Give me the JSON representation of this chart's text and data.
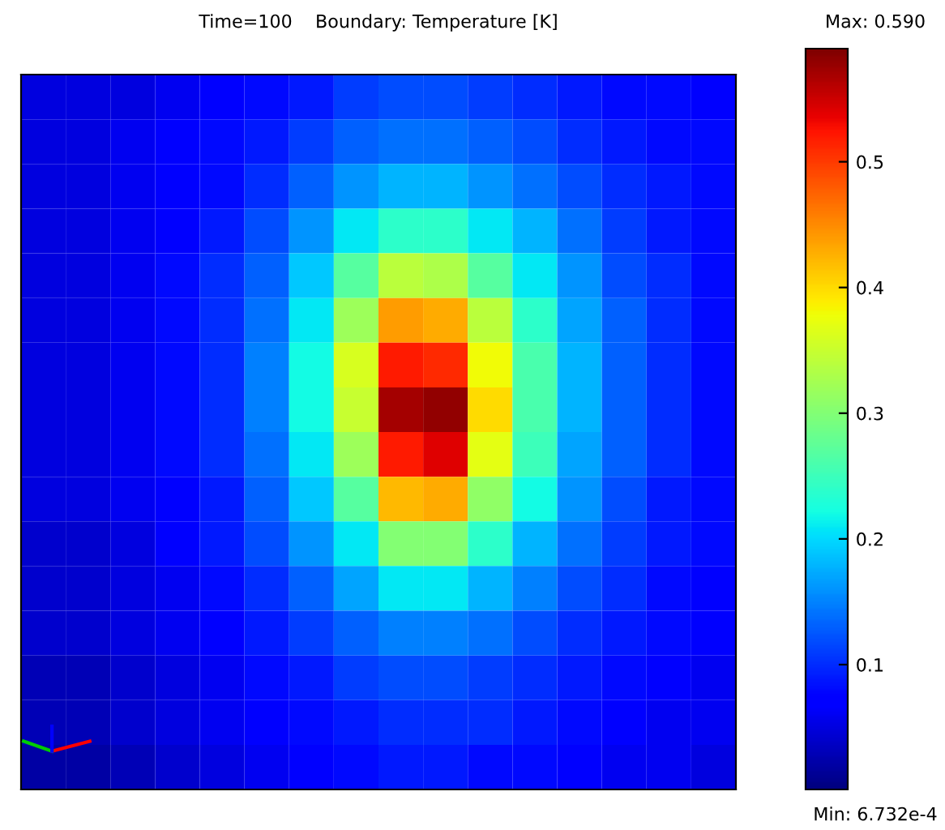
{
  "chart_data": {
    "type": "heatmap",
    "title": "Time=100    Boundary: Temperature [K]",
    "categories": [
      null,
      null,
      null,
      null,
      null,
      null,
      null,
      null,
      null,
      null,
      null,
      null,
      null,
      null,
      null,
      null
    ],
    "y_categories": [
      null,
      null,
      null,
      null,
      null,
      null,
      null,
      null,
      null,
      null,
      null,
      null,
      null,
      null,
      null,
      null
    ],
    "cells": [
      [
        0.05,
        0.05,
        0.05,
        0.06,
        0.07,
        0.08,
        0.09,
        0.11,
        0.12,
        0.12,
        0.11,
        0.1,
        0.09,
        0.08,
        0.08,
        0.07
      ],
      [
        0.05,
        0.05,
        0.06,
        0.07,
        0.08,
        0.09,
        0.11,
        0.13,
        0.14,
        0.14,
        0.13,
        0.12,
        0.1,
        0.09,
        0.08,
        0.08
      ],
      [
        0.05,
        0.05,
        0.06,
        0.07,
        0.08,
        0.1,
        0.13,
        0.16,
        0.18,
        0.18,
        0.16,
        0.14,
        0.12,
        0.1,
        0.09,
        0.08
      ],
      [
        0.05,
        0.05,
        0.06,
        0.07,
        0.09,
        0.12,
        0.16,
        0.21,
        0.24,
        0.24,
        0.21,
        0.18,
        0.14,
        0.11,
        0.09,
        0.08
      ],
      [
        0.05,
        0.05,
        0.06,
        0.08,
        0.1,
        0.13,
        0.19,
        0.27,
        0.34,
        0.33,
        0.27,
        0.21,
        0.16,
        0.12,
        0.1,
        0.08
      ],
      [
        0.05,
        0.05,
        0.06,
        0.08,
        0.1,
        0.14,
        0.21,
        0.32,
        0.44,
        0.43,
        0.34,
        0.24,
        0.17,
        0.13,
        0.1,
        0.08
      ],
      [
        0.05,
        0.05,
        0.06,
        0.08,
        0.1,
        0.15,
        0.22,
        0.36,
        0.52,
        0.51,
        0.38,
        0.26,
        0.18,
        0.13,
        0.1,
        0.08
      ],
      [
        0.05,
        0.05,
        0.06,
        0.08,
        0.1,
        0.15,
        0.22,
        0.35,
        0.57,
        0.58,
        0.4,
        0.26,
        0.18,
        0.13,
        0.1,
        0.08
      ],
      [
        0.05,
        0.05,
        0.06,
        0.08,
        0.1,
        0.14,
        0.21,
        0.32,
        0.52,
        0.54,
        0.37,
        0.25,
        0.17,
        0.13,
        0.1,
        0.08
      ],
      [
        0.05,
        0.05,
        0.06,
        0.07,
        0.09,
        0.13,
        0.19,
        0.27,
        0.42,
        0.43,
        0.31,
        0.22,
        0.16,
        0.12,
        0.09,
        0.08
      ],
      [
        0.04,
        0.04,
        0.05,
        0.07,
        0.09,
        0.12,
        0.16,
        0.21,
        0.3,
        0.3,
        0.24,
        0.18,
        0.14,
        0.11,
        0.09,
        0.08
      ],
      [
        0.04,
        0.04,
        0.05,
        0.06,
        0.08,
        0.1,
        0.13,
        0.17,
        0.21,
        0.21,
        0.18,
        0.15,
        0.12,
        0.1,
        0.08,
        0.07
      ],
      [
        0.04,
        0.04,
        0.05,
        0.06,
        0.07,
        0.09,
        0.11,
        0.13,
        0.15,
        0.15,
        0.14,
        0.12,
        0.1,
        0.09,
        0.08,
        0.07
      ],
      [
        0.03,
        0.03,
        0.04,
        0.05,
        0.06,
        0.08,
        0.09,
        0.11,
        0.12,
        0.12,
        0.11,
        0.1,
        0.09,
        0.08,
        0.07,
        0.06
      ],
      [
        0.03,
        0.03,
        0.04,
        0.05,
        0.06,
        0.07,
        0.08,
        0.09,
        0.1,
        0.1,
        0.1,
        0.09,
        0.08,
        0.07,
        0.06,
        0.06
      ],
      [
        0.02,
        0.02,
        0.03,
        0.04,
        0.05,
        0.06,
        0.07,
        0.08,
        0.09,
        0.09,
        0.08,
        0.08,
        0.07,
        0.06,
        0.06,
        0.05
      ]
    ],
    "clim": [
      0.0006732,
      0.59
    ],
    "cticks": [
      0.1,
      0.2,
      0.3,
      0.4,
      0.5
    ],
    "annotations": [
      "Max: 0.590",
      "Min: 6.732e-4"
    ]
  }
}
